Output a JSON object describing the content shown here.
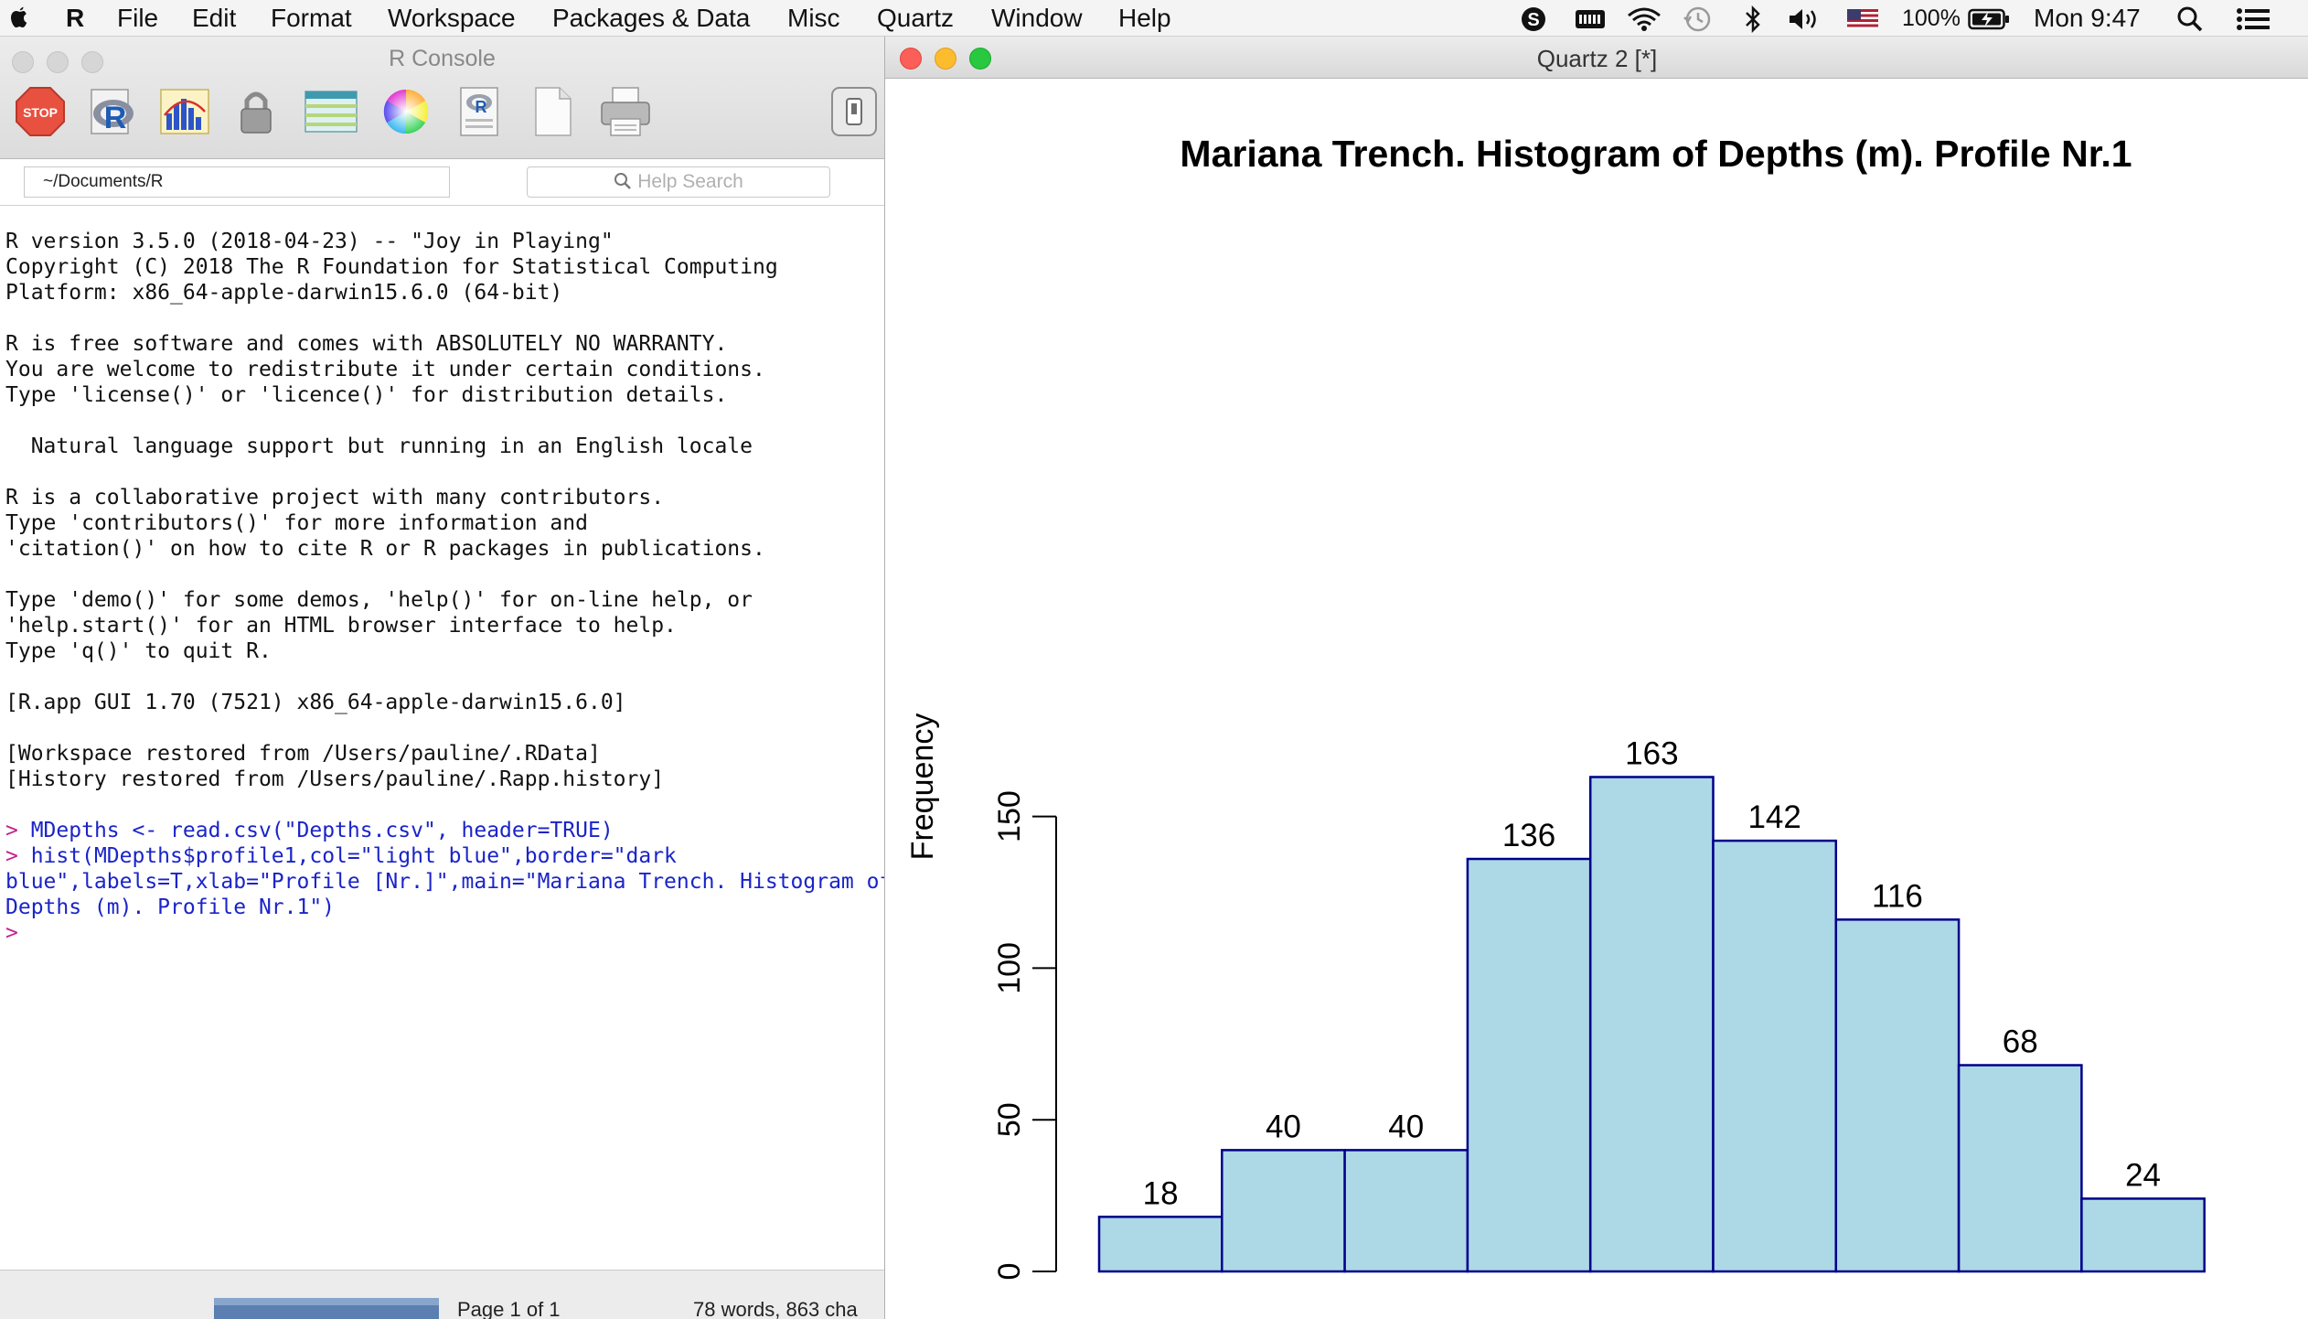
{
  "menubar": {
    "app": "R",
    "items": [
      "File",
      "Edit",
      "Format",
      "Workspace",
      "Packages & Data",
      "Misc",
      "Quartz",
      "Window",
      "Help"
    ],
    "status_icons": [
      "skype-icon",
      "keyboard-icon",
      "wifi-icon",
      "time-machine-icon",
      "bluetooth-icon",
      "volume-icon",
      "flag-icon",
      "battery-icon",
      "search-icon",
      "list-icon"
    ],
    "battery": "100%",
    "clock": "Mon 9:47"
  },
  "console": {
    "title": "R Console",
    "toolbar_icons": [
      "stop-icon",
      "r-source-icon",
      "chart-icon",
      "lock-icon",
      "table-icon",
      "color-wheel-icon",
      "r-document-icon",
      "new-document-icon",
      "print-icon",
      "toggle-icon"
    ],
    "stop_label": "STOP",
    "path": "~/Documents/R",
    "help_search_placeholder": "Help Search",
    "lines": [
      "R version 3.5.0 (2018-04-23) -- \"Joy in Playing\"",
      "Copyright (C) 2018 The R Foundation for Statistical Computing",
      "Platform: x86_64-apple-darwin15.6.0 (64-bit)",
      "",
      "R is free software and comes with ABSOLUTELY NO WARRANTY.",
      "You are welcome to redistribute it under certain conditions.",
      "Type 'license()' or 'licence()' for distribution details.",
      "",
      "  Natural language support but running in an English locale",
      "",
      "R is a collaborative project with many contributors.",
      "Type 'contributors()' for more information and",
      "'citation()' on how to cite R or R packages in publications.",
      "",
      "Type 'demo()' for some demos, 'help()' for on-line help, or",
      "'help.start()' for an HTML browser interface to help.",
      "Type 'q()' to quit R.",
      "",
      "[R.app GUI 1.70 (7521) x86_64-apple-darwin15.6.0]",
      "",
      "[Workspace restored from /Users/pauline/.RData]",
      "[History restored from /Users/pauline/.Rapp.history]",
      ""
    ],
    "prompt": ">",
    "commands": [
      [
        "MDepths <- read.csv(\"Depths.csv\", header=TRUE)"
      ],
      [
        "hist(MDepths$profile1,col=\"light blue\",border=\"dark",
        "blue\",labels=T,xlab=\"Profile [Nr.]\",main=\"Mariana Trench. Histogram of",
        "Depths (m). Profile Nr.1\")"
      ]
    ],
    "statusbar": {
      "page": "Page 1 of 1",
      "words": "78 words, 863 cha"
    }
  },
  "quartz": {
    "title": "Quartz 2 [*]"
  },
  "chart_data": {
    "type": "bar",
    "title": "Mariana Trench. Histogram of Depths (m). Profile Nr.1",
    "ylabel": "Frequency",
    "xlabel": "",
    "values": [
      18,
      40,
      40,
      136,
      163,
      142,
      116,
      68,
      24
    ],
    "data_labels": [
      "18",
      "40",
      "40",
      "136",
      "163",
      "142",
      "116",
      "68",
      "24"
    ],
    "yticks": [
      "0",
      "50",
      "100",
      "150"
    ],
    "ylim": [
      0,
      163
    ],
    "bar_fill": "#add8e6",
    "bar_border": "#00008b",
    "grid": false
  }
}
